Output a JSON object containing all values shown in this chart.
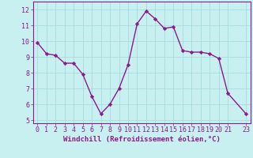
{
  "x": [
    0,
    1,
    2,
    3,
    4,
    5,
    6,
    7,
    8,
    9,
    10,
    11,
    12,
    13,
    14,
    15,
    16,
    17,
    18,
    19,
    20,
    21,
    23
  ],
  "y": [
    9.9,
    9.2,
    9.1,
    8.6,
    8.6,
    7.9,
    6.5,
    5.4,
    6.0,
    7.0,
    8.5,
    11.1,
    11.9,
    11.4,
    10.8,
    10.9,
    9.4,
    9.3,
    9.3,
    9.2,
    8.9,
    6.7,
    5.4
  ],
  "line_color": "#8b1a8b",
  "marker": "D",
  "marker_size": 2.2,
  "linewidth": 1.0,
  "bg_color": "#c8f0f0",
  "grid_color": "#a0d8d8",
  "xlabel": "Windchill (Refroidissement éolien,°C)",
  "xlabel_color": "#8b1a8b",
  "xlabel_fontsize": 6.5,
  "tick_color": "#8b1a8b",
  "tick_fontsize": 6.0,
  "ylim": [
    4.8,
    12.5
  ],
  "yticks": [
    5,
    6,
    7,
    8,
    9,
    10,
    11,
    12
  ],
  "xticks": [
    0,
    1,
    2,
    3,
    4,
    5,
    6,
    7,
    8,
    9,
    10,
    11,
    12,
    13,
    14,
    15,
    16,
    17,
    18,
    19,
    20,
    21,
    23
  ],
  "xtick_labels": [
    "0",
    "1",
    "2",
    "3",
    "4",
    "5",
    "6",
    "7",
    "8",
    "9",
    "10",
    "11",
    "12",
    "13",
    "14",
    "15",
    "16",
    "17",
    "18",
    "19",
    "20",
    "21",
    "23"
  ],
  "xlim": [
    -0.5,
    23.5
  ]
}
